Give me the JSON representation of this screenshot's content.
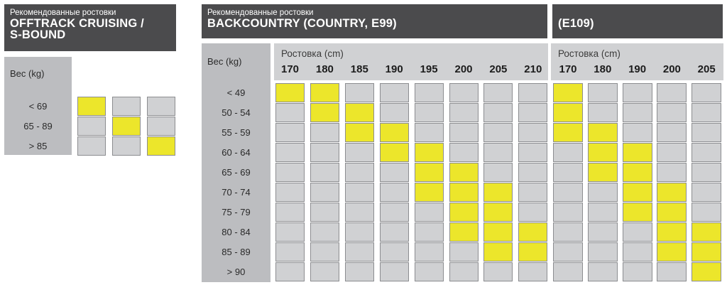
{
  "panel_left": {
    "subtitle": "Рекомендованные ростовки",
    "title_line1": "OFFTRACK CRUISING /",
    "title_line2": "S-BOUND",
    "weight_label": "Вес (kg)",
    "weights": [
      "< 69",
      "65 - 89",
      "> 85"
    ],
    "matrix": [
      [
        1,
        0,
        0
      ],
      [
        0,
        1,
        0
      ],
      [
        0,
        0,
        1
      ]
    ]
  },
  "panel_backcountry": {
    "subtitle": "Рекомендованные ростовки",
    "title": "BACKCOUNTRY (COUNTRY, E99)",
    "weight_label": "Вес (kg)",
    "size_label": "Ростовка (cm)",
    "sizes": [
      "170",
      "180",
      "185",
      "190",
      "195",
      "200",
      "205",
      "210"
    ],
    "weights": [
      "< 49",
      "50 - 54",
      "55 - 59",
      "60 - 64",
      "65 - 69",
      "70 - 74",
      "75 - 79",
      "80 - 84",
      "85 - 89",
      "> 90"
    ],
    "matrix": [
      [
        1,
        1,
        0,
        0,
        0,
        0,
        0,
        0
      ],
      [
        0,
        1,
        1,
        0,
        0,
        0,
        0,
        0
      ],
      [
        0,
        0,
        1,
        1,
        0,
        0,
        0,
        0
      ],
      [
        0,
        0,
        0,
        1,
        1,
        0,
        0,
        0
      ],
      [
        0,
        0,
        0,
        0,
        1,
        1,
        0,
        0
      ],
      [
        0,
        0,
        0,
        0,
        1,
        1,
        1,
        0
      ],
      [
        0,
        0,
        0,
        0,
        0,
        1,
        1,
        0
      ],
      [
        0,
        0,
        0,
        0,
        0,
        1,
        1,
        1
      ],
      [
        0,
        0,
        0,
        0,
        0,
        0,
        1,
        1
      ],
      [
        0,
        0,
        0,
        0,
        0,
        0,
        0,
        0
      ]
    ]
  },
  "panel_e109": {
    "title": "(E109)",
    "size_label": "Ростовка (cm)",
    "sizes": [
      "170",
      "180",
      "190",
      "200",
      "205"
    ],
    "matrix": [
      [
        1,
        0,
        0,
        0,
        0
      ],
      [
        1,
        0,
        0,
        0,
        0
      ],
      [
        1,
        1,
        0,
        0,
        0
      ],
      [
        0,
        1,
        1,
        0,
        0
      ],
      [
        0,
        1,
        1,
        0,
        0
      ],
      [
        0,
        0,
        1,
        1,
        0
      ],
      [
        0,
        0,
        1,
        1,
        0
      ],
      [
        0,
        0,
        0,
        1,
        1
      ],
      [
        0,
        0,
        0,
        1,
        1
      ],
      [
        0,
        0,
        0,
        0,
        1
      ]
    ]
  },
  "colors": {
    "header_bg": "#4b4b4d",
    "highlight": "#ece62b",
    "cell": "#d0d1d3",
    "label_column": "#bcbdc0"
  }
}
